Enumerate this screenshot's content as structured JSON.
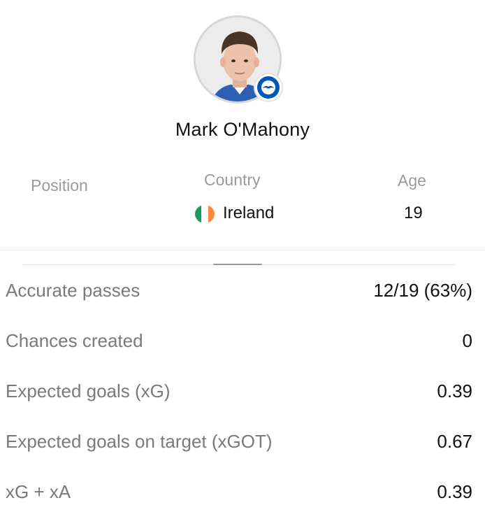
{
  "player": {
    "name": "Mark O'Mahony",
    "avatar": "player-photo",
    "club_badge": "brighton-badge"
  },
  "info": {
    "position_label": "Position",
    "country_label": "Country",
    "country_value": "Ireland",
    "country_flag": "ireland-flag",
    "age_label": "Age",
    "age_value": "19"
  },
  "stats": [
    {
      "label": "Accurate passes",
      "value": "12/19 (63%)"
    },
    {
      "label": "Chances created",
      "value": "0"
    },
    {
      "label": "Expected goals (xG)",
      "value": "0.39"
    },
    {
      "label": "Expected goals on target (xGOT)",
      "value": "0.67"
    },
    {
      "label": "xG + xA",
      "value": "0.39"
    }
  ],
  "colors": {
    "flag_green": "#169b62",
    "flag_white": "#ffffff",
    "flag_orange": "#ff883e",
    "badge_blue": "#0057b8"
  }
}
